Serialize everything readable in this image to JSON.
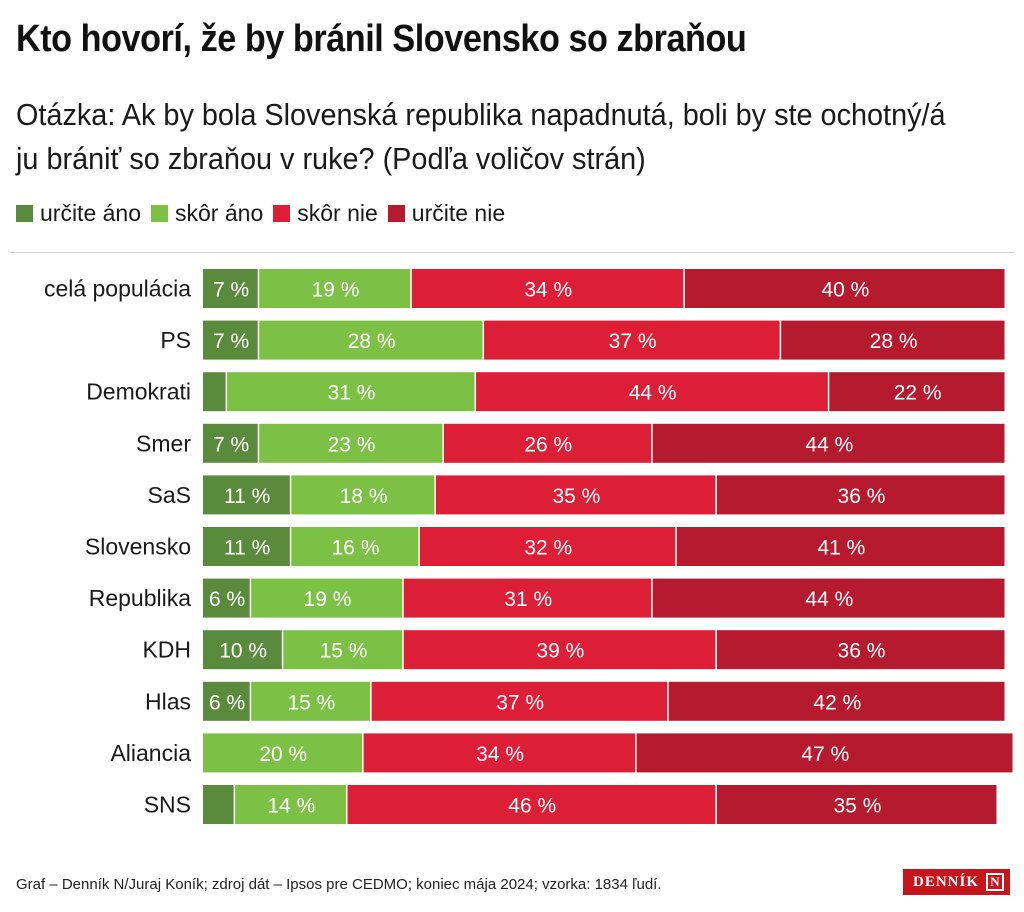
{
  "title": "Kto hovorí, že by bránil Slovensko so zbraňou",
  "subtitle": "Otázka: Ak by bola Slovenská republika napadnutá, boli by ste ochotný/á ju brániť so zbraňou v ruke? (Podľa voličov strán)",
  "legend": [
    {
      "label": "určite áno",
      "color": "#5a8a3c"
    },
    {
      "label": "skôr áno",
      "color": "#7cc146"
    },
    {
      "label": "skôr nie",
      "color": "#dc1e36"
    },
    {
      "label": "určite nie",
      "color": "#b51a2e"
    }
  ],
  "footer": "Graf – Denník N/Juraj Koník; zdroj dát – Ipsos pre CEDMO; koniec mája 2024; vzorka: 1834 ľudí.",
  "logo_text": "DENNÍK",
  "logo_mark": "N",
  "chart_data": {
    "type": "bar",
    "orientation": "horizontal",
    "stacked": true,
    "value_suffix": " %",
    "categories": [
      "celá populácia",
      "PS",
      "Demokrati",
      "Smer",
      "SaS",
      "Slovensko",
      "Republika",
      "KDH",
      "Hlas",
      "Aliancia",
      "SNS"
    ],
    "series": [
      {
        "name": "určite áno",
        "color": "#5a8a3c",
        "values": [
          7,
          7,
          3,
          7,
          11,
          11,
          6,
          10,
          6,
          0,
          4
        ],
        "labels": [
          "7 %",
          "7 %",
          "",
          "7 %",
          "11 %",
          "11 %",
          "6 %",
          "10 %",
          "6 %",
          "",
          ""
        ]
      },
      {
        "name": "skôr áno",
        "color": "#7cc146",
        "values": [
          19,
          28,
          31,
          23,
          18,
          16,
          19,
          15,
          15,
          20,
          14
        ],
        "labels": [
          "19 %",
          "28 %",
          "31 %",
          "23 %",
          "18 %",
          "16 %",
          "19 %",
          "15 %",
          "15 %",
          "20 %",
          "14 %"
        ]
      },
      {
        "name": "skôr nie",
        "color": "#dc1e36",
        "values": [
          34,
          37,
          44,
          26,
          35,
          32,
          31,
          39,
          37,
          34,
          46
        ],
        "labels": [
          "34 %",
          "37 %",
          "44 %",
          "26 %",
          "35 %",
          "32 %",
          "31 %",
          "39 %",
          "37 %",
          "34 %",
          "46 %"
        ]
      },
      {
        "name": "určite nie",
        "color": "#b51a2e",
        "values": [
          40,
          28,
          22,
          44,
          36,
          41,
          44,
          36,
          42,
          47,
          35
        ],
        "labels": [
          "40 %",
          "28 %",
          "22 %",
          "44 %",
          "36 %",
          "41 %",
          "44 %",
          "36 %",
          "42 %",
          "47 %",
          "35 %"
        ]
      }
    ],
    "xlim": [
      0,
      100
    ],
    "grid": false,
    "legend_position": "top-left"
  }
}
